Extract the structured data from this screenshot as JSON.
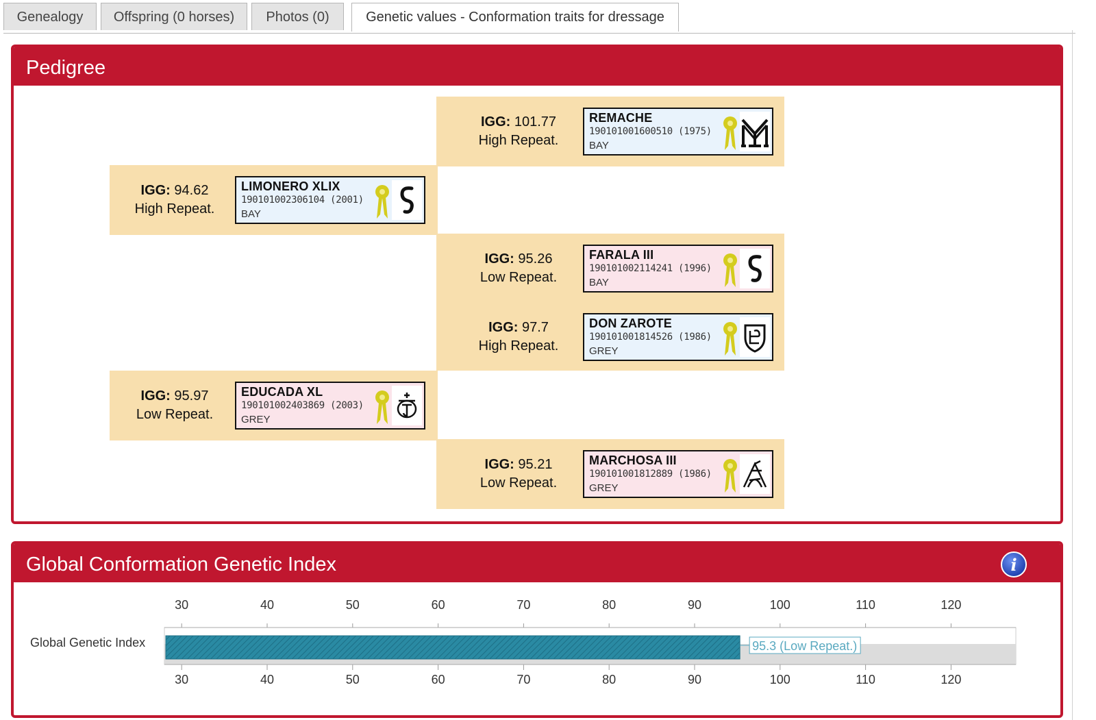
{
  "tabs": [
    {
      "label": "Genealogy",
      "active": false
    },
    {
      "label": "Offspring (0 horses)",
      "active": false
    },
    {
      "label": "Photos (0)",
      "active": false
    },
    {
      "label": "Genetic values - Conformation traits for dressage",
      "active": true
    }
  ],
  "pedigree": {
    "title": "Pedigree",
    "igg_label": "IGG:",
    "sire": {
      "igg": "94.62",
      "repeat": "High Repeat.",
      "name": "LIMONERO XLIX",
      "reg": "190101002306104 (2001)",
      "coat": "BAY",
      "sex": "male",
      "brand": "s-brand"
    },
    "dam": {
      "igg": "95.97",
      "repeat": "Low Repeat.",
      "name": "EDUCADA XL",
      "reg": "190101002403869 (2003)",
      "coat": "GREY",
      "sex": "female",
      "brand": "crown-t-brand"
    },
    "sire_sire": {
      "igg": "101.77",
      "repeat": "High Repeat.",
      "name": "REMACHE",
      "reg": "190101001600510 (1975)",
      "coat": "BAY",
      "sex": "male",
      "brand": "my-brand"
    },
    "sire_dam": {
      "igg": "95.26",
      "repeat": "Low Repeat.",
      "name": "FARALA III",
      "reg": "190101002114241 (1996)",
      "coat": "BAY",
      "sex": "female",
      "brand": "s-brand"
    },
    "dam_sire": {
      "igg": "97.7",
      "repeat": "High Repeat.",
      "name": "DON ZAROTE",
      "reg": "190101001814526 (1986)",
      "coat": "GREY",
      "sex": "male",
      "brand": "shield-brand"
    },
    "dam_dam": {
      "igg": "95.21",
      "repeat": "Low Repeat.",
      "name": "MARCHOSA III",
      "reg": "190101001812889 (1986)",
      "coat": "GREY",
      "sex": "female",
      "brand": "arch-brand"
    }
  },
  "index": {
    "title": "Global Conformation Genetic Index",
    "info_icon": "info-icon",
    "chart_data": {
      "type": "bar",
      "orientation": "horizontal",
      "categories": [
        "Global Genetic Index"
      ],
      "values": [
        95.3
      ],
      "data_label": "95.3 (Low Repeat.)",
      "xlim": [
        20,
        128
      ],
      "ticks": [
        30,
        40,
        50,
        60,
        70,
        80,
        90,
        100,
        110,
        120
      ],
      "bar_color": "#2a8aa3",
      "track_color": "#dcdcdc"
    }
  },
  "colors": {
    "panel_red": "#c0172f",
    "pedigree_bg": "#f8dfae",
    "male_card": "#e9f3fc",
    "female_card": "#fbe4ea",
    "medal": "#d4cc1e"
  }
}
